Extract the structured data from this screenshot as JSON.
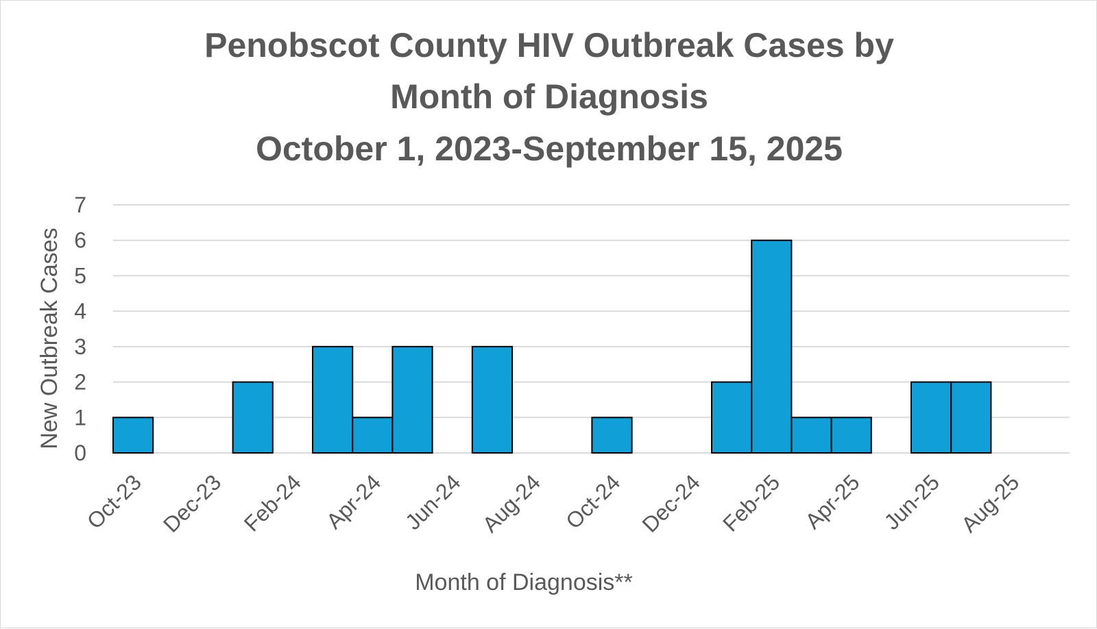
{
  "chart_data": {
    "type": "bar",
    "title": [
      "Penobscot County HIV Outbreak Cases by",
      "Month of Diagnosis",
      "October 1, 2023-September 15, 2025"
    ],
    "xlabel": "Month of Diagnosis**",
    "ylabel": "New Outbreak Cases",
    "ylim": [
      0,
      7
    ],
    "yticks": [
      "0",
      "1",
      "2",
      "3",
      "4",
      "5",
      "6",
      "7"
    ],
    "grid": true,
    "legend": "none",
    "bar_color": "#119FD8",
    "bar_edge_color": "#000000",
    "categories": [
      "Oct-23",
      "Nov-23",
      "Dec-23",
      "Jan-24",
      "Feb-24",
      "Mar-24",
      "Apr-24",
      "May-24",
      "Jun-24",
      "Jul-24",
      "Aug-24",
      "Sep-24",
      "Oct-24",
      "Nov-24",
      "Dec-24",
      "Jan-25",
      "Feb-25",
      "Mar-25",
      "Apr-25",
      "May-25",
      "Jun-25",
      "Jul-25",
      "Aug-25",
      "Sep-25"
    ],
    "values": [
      1,
      0,
      0,
      2,
      0,
      3,
      1,
      3,
      0,
      3,
      0,
      0,
      1,
      0,
      0,
      2,
      6,
      1,
      1,
      0,
      2,
      2,
      0,
      0
    ],
    "x_tick_labels": [
      "Oct-23",
      "Dec-23",
      "Feb-24",
      "Apr-24",
      "Jun-24",
      "Aug-24",
      "Oct-24",
      "Dec-24",
      "Feb-25",
      "Apr-25",
      "Jun-25",
      "Aug-25"
    ]
  }
}
